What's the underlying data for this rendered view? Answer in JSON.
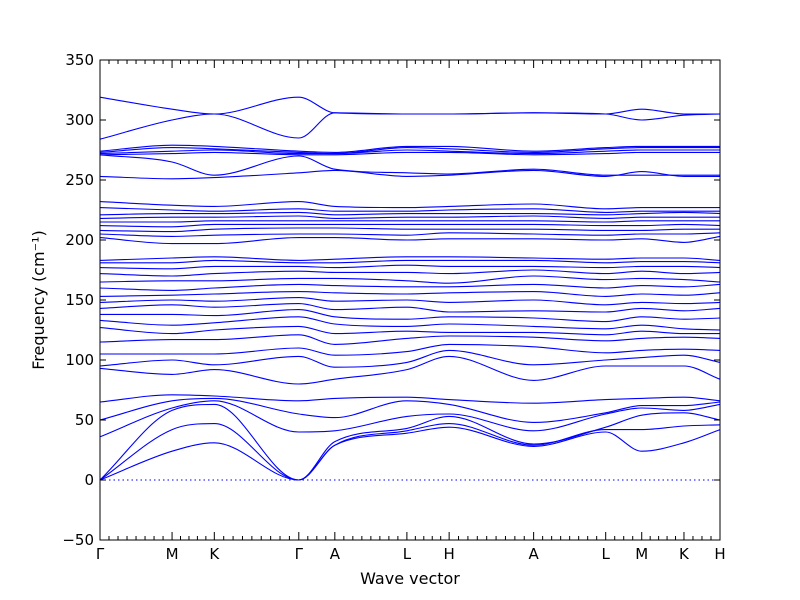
{
  "chart_data": {
    "type": "line",
    "title": "",
    "xlabel": "Wave vector",
    "ylabel": "Frequency (cm⁻¹)",
    "ylim": [
      -50,
      350
    ],
    "yticks": [
      -50,
      0,
      50,
      100,
      150,
      200,
      250,
      300,
      350
    ],
    "grid": false,
    "legend": "none",
    "line_color": "#0000ff",
    "path_points": [
      {
        "label": "Γ",
        "x": 0.0
      },
      {
        "label": "M",
        "x": 0.58
      },
      {
        "label": "K",
        "x": 0.92
      },
      {
        "label": "Γ",
        "x": 1.6
      },
      {
        "label": "A",
        "x": 1.89
      },
      {
        "label": "L",
        "x": 2.47
      },
      {
        "label": "H",
        "x": 2.81
      },
      {
        "label": "A",
        "x": 3.49
      },
      {
        "label": "L",
        "x": 4.07
      },
      {
        "label": "M",
        "x": 4.36
      },
      {
        "label": "K",
        "x": 4.7
      },
      {
        "label": "H",
        "x": 4.99
      }
    ],
    "zero_line": 0,
    "series": [
      {
        "x": [
          0,
          0.58,
          0.92,
          1.6,
          1.89,
          2.47,
          2.81,
          3.49,
          4.07,
          4.36,
          4.7,
          4.99
        ],
        "y": [
          0,
          24,
          31,
          0,
          29,
          39,
          44,
          28,
          40,
          24,
          31,
          42
        ]
      },
      {
        "x": [
          0,
          0.58,
          0.92,
          1.6,
          1.89,
          2.47,
          2.81,
          3.49,
          4.07,
          4.36,
          4.7,
          4.99
        ],
        "y": [
          0,
          42,
          47,
          0,
          29,
          41,
          47,
          29,
          42,
          42,
          45,
          46
        ]
      },
      {
        "x": [
          0,
          0.58,
          0.92,
          1.6,
          1.89,
          2.47,
          2.81,
          3.49,
          4.07,
          4.36,
          4.7,
          4.99
        ],
        "y": [
          0,
          58,
          63,
          0,
          32,
          43,
          53,
          30,
          44,
          54,
          56,
          50
        ]
      },
      {
        "x": [
          0,
          0.58,
          0.92,
          1.6,
          1.89,
          2.47,
          2.81,
          3.49,
          4.07,
          4.36,
          4.7,
          4.99
        ],
        "y": [
          36,
          60,
          66,
          40,
          41,
          53,
          55,
          41,
          55,
          60,
          58,
          63
        ]
      },
      {
        "x": [
          0,
          0.58,
          0.92,
          1.6,
          1.89,
          2.47,
          2.81,
          3.49,
          4.07,
          4.36,
          4.7,
          4.99
        ],
        "y": [
          50,
          66,
          68,
          55,
          52,
          66,
          63,
          48,
          56,
          62,
          62,
          65
        ]
      },
      {
        "x": [
          0,
          0.58,
          0.92,
          1.6,
          1.89,
          2.47,
          2.81,
          3.49,
          4.07,
          4.36,
          4.7,
          4.99
        ],
        "y": [
          65,
          71,
          70,
          66,
          68,
          69,
          67,
          64,
          67,
          68,
          69,
          66
        ]
      },
      {
        "x": [
          0,
          0.58,
          0.92,
          1.6,
          1.89,
          2.47,
          2.81,
          3.49,
          4.07,
          4.36,
          4.7,
          4.99
        ],
        "y": [
          93,
          88,
          92,
          80,
          84,
          92,
          103,
          83,
          95,
          95,
          95,
          84
        ]
      },
      {
        "x": [
          0,
          0.58,
          0.92,
          1.6,
          1.89,
          2.47,
          2.81,
          3.49,
          4.07,
          4.36,
          4.7,
          4.99
        ],
        "y": [
          95,
          100,
          96,
          103,
          94,
          98,
          108,
          96,
          100,
          102,
          104,
          98
        ]
      },
      {
        "x": [
          0,
          0.58,
          0.92,
          1.6,
          1.89,
          2.47,
          2.81,
          3.49,
          4.07,
          4.36,
          4.7,
          4.99
        ],
        "y": [
          105,
          105,
          105,
          110,
          104,
          107,
          113,
          111,
          106,
          108,
          109,
          108
        ]
      },
      {
        "x": [
          0,
          0.58,
          0.92,
          1.6,
          1.89,
          2.47,
          2.81,
          3.49,
          4.07,
          4.36,
          4.7,
          4.99
        ],
        "y": [
          115,
          117,
          117,
          121,
          113,
          118,
          120,
          119,
          116,
          118,
          119,
          118
        ]
      },
      {
        "x": [
          0,
          0.58,
          0.92,
          1.6,
          1.89,
          2.47,
          2.81,
          3.49,
          4.07,
          4.36,
          4.7,
          4.99
        ],
        "y": [
          127,
          122,
          125,
          128,
          122,
          124,
          123,
          123,
          121,
          124,
          122,
          122
        ]
      },
      {
        "x": [
          0,
          0.58,
          0.92,
          1.6,
          1.89,
          2.47,
          2.81,
          3.49,
          4.07,
          4.36,
          4.7,
          4.99
        ],
        "y": [
          133,
          129,
          131,
          136,
          130,
          128,
          130,
          128,
          126,
          129,
          126,
          125
        ]
      },
      {
        "x": [
          0,
          0.58,
          0.92,
          1.6,
          1.89,
          2.47,
          2.81,
          3.49,
          4.07,
          4.36,
          4.7,
          4.99
        ],
        "y": [
          138,
          138,
          137,
          142,
          136,
          134,
          136,
          135,
          132,
          136,
          134,
          135
        ]
      },
      {
        "x": [
          0,
          0.58,
          0.92,
          1.6,
          1.89,
          2.47,
          2.81,
          3.49,
          4.07,
          4.36,
          4.7,
          4.99
        ],
        "y": [
          143,
          146,
          144,
          147,
          142,
          144,
          140,
          141,
          140,
          143,
          141,
          143
        ]
      },
      {
        "x": [
          0,
          0.58,
          0.92,
          1.6,
          1.89,
          2.47,
          2.81,
          3.49,
          4.07,
          4.36,
          4.7,
          4.99
        ],
        "y": [
          148,
          150,
          149,
          152,
          149,
          150,
          148,
          150,
          146,
          148,
          147,
          148
        ]
      },
      {
        "x": [
          0,
          0.58,
          0.92,
          1.6,
          1.89,
          2.47,
          2.81,
          3.49,
          4.07,
          4.36,
          4.7,
          4.99
        ],
        "y": [
          153,
          154,
          155,
          157,
          156,
          155,
          156,
          157,
          153,
          155,
          154,
          156
        ]
      },
      {
        "x": [
          0,
          0.58,
          0.92,
          1.6,
          1.89,
          2.47,
          2.81,
          3.49,
          4.07,
          4.36,
          4.7,
          4.99
        ],
        "y": [
          160,
          158,
          160,
          163,
          162,
          161,
          161,
          163,
          160,
          162,
          161,
          163
        ]
      },
      {
        "x": [
          0,
          0.58,
          0.92,
          1.6,
          1.89,
          2.47,
          2.81,
          3.49,
          4.07,
          4.36,
          4.7,
          4.99
        ],
        "y": [
          165,
          166,
          166,
          168,
          168,
          166,
          164,
          170,
          167,
          168,
          167,
          165
        ]
      },
      {
        "x": [
          0,
          0.58,
          0.92,
          1.6,
          1.89,
          2.47,
          2.81,
          3.49,
          4.07,
          4.36,
          4.7,
          4.99
        ],
        "y": [
          172,
          170,
          172,
          174,
          173,
          173,
          172,
          175,
          172,
          174,
          172,
          173
        ]
      },
      {
        "x": [
          0,
          0.58,
          0.92,
          1.6,
          1.89,
          2.47,
          2.81,
          3.49,
          4.07,
          4.36,
          4.7,
          4.99
        ],
        "y": [
          177,
          176,
          178,
          178,
          177,
          179,
          178,
          178,
          177,
          178,
          178,
          177
        ]
      },
      {
        "x": [
          0,
          0.58,
          0.92,
          1.6,
          1.89,
          2.47,
          2.81,
          3.49,
          4.07,
          4.36,
          4.7,
          4.99
        ],
        "y": [
          181,
          181,
          183,
          181,
          181,
          183,
          183,
          183,
          181,
          182,
          182,
          181
        ]
      },
      {
        "x": [
          0,
          0.58,
          0.92,
          1.6,
          1.89,
          2.47,
          2.81,
          3.49,
          4.07,
          4.36,
          4.7,
          4.99
        ],
        "y": [
          183,
          185,
          186,
          183,
          184,
          186,
          186,
          185,
          184,
          185,
          185,
          183
        ]
      },
      {
        "x": [
          0,
          0.58,
          0.92,
          1.6,
          1.89,
          2.47,
          2.81,
          3.49,
          4.07,
          4.36,
          4.7,
          4.99
        ],
        "y": [
          202,
          197,
          197,
          202,
          202,
          200,
          201,
          201,
          200,
          201,
          198,
          203
        ]
      },
      {
        "x": [
          0,
          0.58,
          0.92,
          1.6,
          1.89,
          2.47,
          2.81,
          3.49,
          4.07,
          4.36,
          4.7,
          4.99
        ],
        "y": [
          205,
          203,
          204,
          205,
          205,
          204,
          206,
          205,
          204,
          205,
          205,
          206
        ]
      },
      {
        "x": [
          0,
          0.58,
          0.92,
          1.6,
          1.89,
          2.47,
          2.81,
          3.49,
          4.07,
          4.36,
          4.7,
          4.99
        ],
        "y": [
          208,
          207,
          209,
          210,
          210,
          209,
          209,
          209,
          208,
          208,
          209,
          209
        ]
      },
      {
        "x": [
          0,
          0.58,
          0.92,
          1.6,
          1.89,
          2.47,
          2.81,
          3.49,
          4.07,
          4.36,
          4.7,
          4.99
        ],
        "y": [
          212,
          211,
          213,
          213,
          213,
          213,
          213,
          213,
          212,
          212,
          213,
          212
        ]
      },
      {
        "x": [
          0,
          0.58,
          0.92,
          1.6,
          1.89,
          2.47,
          2.81,
          3.49,
          4.07,
          4.36,
          4.7,
          4.99
        ],
        "y": [
          215,
          215,
          216,
          216,
          216,
          216,
          216,
          216,
          215,
          216,
          216,
          216
        ]
      },
      {
        "x": [
          0,
          0.58,
          0.92,
          1.6,
          1.89,
          2.47,
          2.81,
          3.49,
          4.07,
          4.36,
          4.7,
          4.99
        ],
        "y": [
          218,
          219,
          219,
          220,
          218,
          219,
          219,
          220,
          218,
          219,
          219,
          219
        ]
      },
      {
        "x": [
          0,
          0.58,
          0.92,
          1.6,
          1.89,
          2.47,
          2.81,
          3.49,
          4.07,
          4.36,
          4.7,
          4.99
        ],
        "y": [
          221,
          222,
          222,
          223,
          221,
          222,
          222,
          222,
          221,
          222,
          223,
          222
        ]
      },
      {
        "x": [
          0,
          0.58,
          0.92,
          1.6,
          1.89,
          2.47,
          2.81,
          3.49,
          4.07,
          4.36,
          4.7,
          4.99
        ],
        "y": [
          227,
          225,
          224,
          226,
          224,
          224,
          225,
          226,
          223,
          224,
          224,
          224
        ]
      },
      {
        "x": [
          0,
          0.58,
          0.92,
          1.6,
          1.89,
          2.47,
          2.81,
          3.49,
          4.07,
          4.36,
          4.7,
          4.99
        ],
        "y": [
          232,
          229,
          228,
          232,
          228,
          227,
          228,
          230,
          226,
          227,
          227,
          227
        ]
      },
      {
        "x": [
          0,
          0.58,
          0.92,
          1.6,
          1.89,
          2.47,
          2.81,
          3.49,
          4.07,
          4.36,
          4.7,
          4.99
        ],
        "y": [
          253,
          251,
          252,
          256,
          258,
          253,
          254,
          258,
          253,
          257,
          253,
          253
        ]
      },
      {
        "x": [
          0,
          0.58,
          0.92,
          1.6,
          1.89,
          2.47,
          2.81,
          3.49,
          4.07,
          4.36,
          4.7,
          4.99
        ],
        "y": [
          271,
          265,
          254,
          270,
          259,
          256,
          255,
          259,
          254,
          254,
          254,
          254
        ]
      },
      {
        "x": [
          0,
          0.58,
          0.92,
          1.6,
          1.89,
          2.47,
          2.81,
          3.49,
          4.07,
          4.36,
          4.7,
          4.99
        ],
        "y": [
          271,
          272,
          273,
          271,
          271,
          273,
          273,
          271,
          272,
          273,
          273,
          273
        ]
      },
      {
        "x": [
          0,
          0.58,
          0.92,
          1.6,
          1.89,
          2.47,
          2.81,
          3.49,
          4.07,
          4.36,
          4.7,
          4.99
        ],
        "y": [
          272,
          274,
          275,
          272,
          272,
          275,
          274,
          272,
          274,
          275,
          275,
          275
        ]
      },
      {
        "x": [
          0,
          0.58,
          0.92,
          1.6,
          1.89,
          2.47,
          2.81,
          3.49,
          4.07,
          4.36,
          4.7,
          4.99
        ],
        "y": [
          273,
          277,
          276,
          273,
          272,
          277,
          276,
          273,
          276,
          277,
          277,
          277
        ]
      },
      {
        "x": [
          0,
          0.58,
          0.92,
          1.6,
          1.89,
          2.47,
          2.81,
          3.49,
          4.07,
          4.36,
          4.7,
          4.99
        ],
        "y": [
          274,
          279,
          278,
          274,
          273,
          278,
          278,
          274,
          277,
          278,
          278,
          278
        ]
      },
      {
        "x": [
          0,
          0.58,
          0.92,
          1.6,
          1.89,
          2.47,
          2.81,
          3.49,
          4.07,
          4.36,
          4.7,
          4.99
        ],
        "y": [
          284,
          300,
          305,
          285,
          306,
          305,
          305,
          306,
          305,
          300,
          304,
          305
        ]
      },
      {
        "x": [
          0,
          0.58,
          0.92,
          1.6,
          1.89,
          2.47,
          2.81,
          3.49,
          4.07,
          4.36,
          4.7,
          4.99
        ],
        "y": [
          319,
          309,
          305,
          319,
          306,
          305,
          305,
          306,
          305,
          309,
          305,
          305
        ]
      }
    ]
  }
}
